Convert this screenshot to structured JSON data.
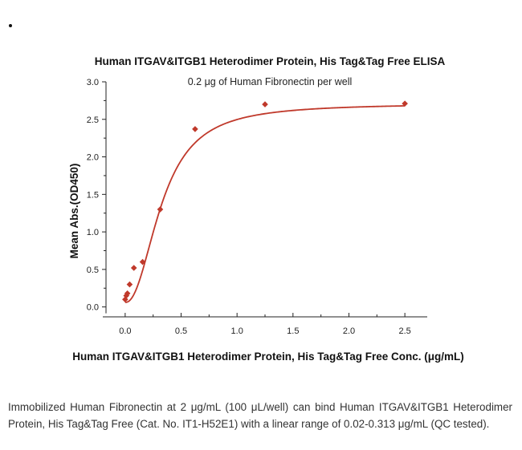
{
  "chart_data": {
    "type": "scatter",
    "title": "Human ITGAV&ITGB1 Heterodimer Protein, His Tag&Tag Free ELISA",
    "subtitle": "0.2 μg of Human Fibronectin per well",
    "xlabel": "Human ITGAV&ITGB1 Heterodimer Protein, His Tag&Tag Free Conc. (μg/mL)",
    "ylabel": "Mean Abs.(OD450)",
    "xlim": [
      -0.2,
      2.7
    ],
    "ylim": [
      -0.1,
      3.0
    ],
    "xticks": [
      0.0,
      0.5,
      1.0,
      1.5,
      2.0,
      2.5
    ],
    "xtick_labels": [
      "0.0",
      "0.5",
      "1.0",
      "1.5",
      "2.0",
      "2.5"
    ],
    "yticks": [
      0.0,
      0.5,
      1.0,
      1.5,
      2.0,
      2.5,
      3.0
    ],
    "ytick_labels": [
      "0.0",
      "0.5",
      "1.0",
      "1.5",
      "2.0",
      "2.5",
      "3.0"
    ],
    "grid": false,
    "legend": "none",
    "color": "#c0392b",
    "marker": "diamond",
    "points": [
      {
        "x": 0.0,
        "y": 0.1
      },
      {
        "x": 0.01,
        "y": 0.15
      },
      {
        "x": 0.02,
        "y": 0.18
      },
      {
        "x": 0.04,
        "y": 0.3
      },
      {
        "x": 0.078,
        "y": 0.52
      },
      {
        "x": 0.156,
        "y": 0.6
      },
      {
        "x": 0.313,
        "y": 1.3
      },
      {
        "x": 0.625,
        "y": 2.37
      },
      {
        "x": 1.25,
        "y": 2.7
      },
      {
        "x": 2.5,
        "y": 2.71
      }
    ],
    "fit_curve": {
      "type": "4PL",
      "bottom": 0.06,
      "top": 2.71,
      "ec50": 0.33,
      "hill": 2.2
    }
  },
  "caption": "Immobilized Human Fibronectin at 2 μg/mL (100 μL/well) can bind Human ITGAV&ITGB1 Heterodimer Protein, His Tag&Tag Free (Cat. No. IT1-H52E1) with a linear range of 0.02-0.313 μg/mL (QC tested)."
}
